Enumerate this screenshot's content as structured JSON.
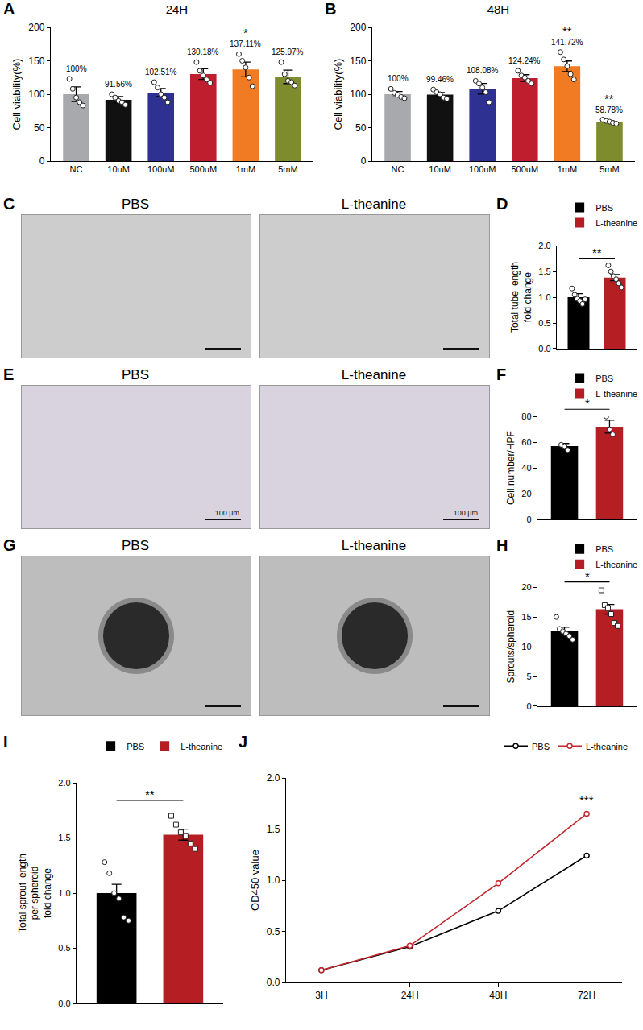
{
  "chart_data": [
    {
      "panel": "A",
      "type": "bar",
      "title": "24H",
      "ylabel": "Cell viability(%)",
      "categories": [
        "NC",
        "10uM",
        "100uM",
        "500uM",
        "1mM",
        "5mM"
      ],
      "values": [
        100,
        91.56,
        102.51,
        130.18,
        137.11,
        125.97
      ],
      "value_labels": [
        "100%",
        "91.56%",
        "102.51%",
        "130.18%",
        "137.11%",
        "125.97%"
      ],
      "data_labels": true,
      "colors": [
        "#a7a9ac",
        "#111111",
        "#2e3192",
        "#be1e2d",
        "#f07b22",
        "#7f8c2d"
      ],
      "error": [
        11,
        5,
        6,
        8,
        11,
        10
      ],
      "points": [
        [
          123,
          108,
          95,
          88,
          83
        ],
        [
          100,
          95,
          90,
          88,
          84
        ],
        [
          118,
          110,
          100,
          95,
          88
        ],
        [
          148,
          135,
          128,
          122,
          117
        ],
        [
          160,
          150,
          140,
          125,
          112
        ],
        [
          148,
          130,
          120,
          118,
          113
        ]
      ],
      "significance": [
        null,
        null,
        null,
        null,
        "*",
        null
      ],
      "ylim": [
        0,
        200
      ],
      "yticks": [
        0,
        50,
        100,
        150,
        200
      ],
      "grid": false
    },
    {
      "panel": "B",
      "type": "bar",
      "title": "48H",
      "ylabel": "Cell viability(%)",
      "categories": [
        "NC",
        "10uM",
        "100uM",
        "500uM",
        "1mM",
        "5mM"
      ],
      "values": [
        100,
        99.46,
        108.08,
        124.24,
        141.72,
        58.78
      ],
      "value_labels": [
        "100%",
        "99.46%",
        "108.08%",
        "124.24%",
        "141.72%",
        "58.78%"
      ],
      "data_labels": true,
      "colors": [
        "#a7a9ac",
        "#111111",
        "#2e3192",
        "#be1e2d",
        "#f07b22",
        "#7f8c2d"
      ],
      "error": [
        4,
        3,
        8,
        5,
        8,
        1.5
      ],
      "points": [
        [
          108,
          102,
          99,
          96,
          94
        ],
        [
          107,
          103,
          100,
          95,
          93
        ],
        [
          120,
          116,
          110,
          103,
          88
        ],
        [
          135,
          128,
          125,
          120,
          116
        ],
        [
          163,
          152,
          142,
          130,
          122
        ],
        [
          62,
          60,
          59,
          57,
          56
        ]
      ],
      "significance": [
        null,
        null,
        null,
        null,
        "**",
        "**"
      ],
      "ylim": [
        0,
        200
      ],
      "yticks": [
        0,
        50,
        100,
        150,
        200
      ],
      "grid": false
    },
    {
      "panel": "D",
      "type": "bar",
      "ylabel": "Total tube length\nfold change",
      "series": [
        {
          "name": "PBS",
          "color": "#000000",
          "values": [
            1.0
          ],
          "error": [
            0.07
          ],
          "points": [
            1.17,
            1.05,
            0.97,
            0.93,
            0.87,
            0.96
          ],
          "marker": "circle"
        },
        {
          "name": "L-theanine",
          "color": "#b51f24",
          "values": [
            1.38
          ],
          "error": [
            0.06
          ],
          "points": [
            1.62,
            1.5,
            1.41,
            1.35,
            1.27,
            1.19
          ],
          "marker": "circle"
        }
      ],
      "significance": "**",
      "legend": "top",
      "tick_labels": "y",
      "grid": false,
      "ylim": [
        0,
        2
      ],
      "yticks": [
        {
          "value": 0,
          "label": "0.0"
        },
        0.5,
        {
          "value": 1,
          "label": "1.0"
        },
        1.5,
        {
          "value": 2,
          "label": "2.0"
        }
      ]
    },
    {
      "panel": "F",
      "type": "bar",
      "ylabel": "Cell number/HPF",
      "series": [
        {
          "name": "PBS",
          "color": "#000000",
          "values": [
            57
          ],
          "error": [
            2
          ],
          "points": [
            58,
            57,
            54
          ],
          "marker": "circle"
        },
        {
          "name": "L-theanine",
          "color": "#b51f24",
          "values": [
            72
          ],
          "error": [
            5
          ],
          "points": [
            80,
            70,
            66
          ],
          "marker": "circle"
        }
      ],
      "significance": "*",
      "legend": "top",
      "tick_labels": "y",
      "grid": false,
      "ylim": [
        0,
        80
      ],
      "yticks": [
        0,
        20,
        40,
        60,
        80
      ]
    },
    {
      "panel": "H",
      "type": "bar",
      "ylabel": "Sprouts/spheroid",
      "series": [
        {
          "name": "PBS",
          "color": "#000000",
          "values": [
            12.6
          ],
          "error": [
            0.7
          ],
          "points": [
            15,
            13,
            12.6,
            12.2,
            11.8,
            11.2
          ],
          "marker": "circle"
        },
        {
          "name": "L-theanine",
          "color": "#b51f24",
          "values": [
            16.3
          ],
          "error": [
            0.8
          ],
          "points": [
            19.5,
            17,
            16.5,
            15.5,
            14,
            13.5
          ],
          "marker": "square"
        }
      ],
      "significance": "*",
      "legend": "top",
      "tick_labels": "y",
      "grid": false,
      "ylim": [
        0,
        20
      ],
      "yticks": [
        0,
        5,
        10,
        15,
        20
      ]
    },
    {
      "panel": "I",
      "type": "bar",
      "ylabel": "Total sprout length\nper spheroid\nfold change",
      "series": [
        {
          "name": "PBS",
          "color": "#000000",
          "values": [
            1.0
          ],
          "error": [
            0.08
          ],
          "points": [
            1.28,
            1.18,
            1.0,
            0.95,
            0.78,
            0.75
          ],
          "marker": "circle"
        },
        {
          "name": "L-theanine",
          "color": "#b51f24",
          "values": [
            1.53
          ],
          "error": [
            0.05
          ],
          "points": [
            1.7,
            1.62,
            1.55,
            1.52,
            1.45,
            1.4
          ],
          "marker": "square"
        }
      ],
      "significance": "**",
      "legend": "top",
      "tick_labels": "y",
      "grid": false,
      "ylim": [
        0,
        2
      ],
      "yticks": [
        {
          "value": 0,
          "label": "0.0"
        },
        0.5,
        {
          "value": 1,
          "label": "1.0"
        },
        1.5,
        {
          "value": 2,
          "label": "2.0"
        }
      ]
    },
    {
      "panel": "J",
      "type": "line",
      "ylabel": "OD450 value",
      "categories": [
        "3H",
        "24H",
        "48H",
        "72H"
      ],
      "series": [
        {
          "name": "PBS",
          "color": "#000000",
          "values": [
            0.12,
            0.35,
            0.7,
            1.24
          ],
          "marker": "circle"
        },
        {
          "name": "L-theanine",
          "color": "#c1272d",
          "values": [
            0.12,
            0.36,
            0.97,
            1.65
          ],
          "marker": "circle"
        }
      ],
      "significance": [
        null,
        null,
        null,
        "***"
      ],
      "legend": "top",
      "grid": false,
      "ylim": [
        0,
        2
      ],
      "yticks": [
        {
          "value": 0,
          "label": "0.0"
        },
        0.5,
        {
          "value": 1,
          "label": "1.0"
        },
        1.5,
        {
          "value": 2,
          "label": "2.0"
        }
      ]
    }
  ],
  "images": [
    {
      "panel": "C",
      "labels": [
        "PBS",
        "L-theanine"
      ]
    },
    {
      "panel": "E",
      "labels": [
        "PBS",
        "L-theanine"
      ],
      "scale_label": "100 μm"
    },
    {
      "panel": "G",
      "labels": [
        "PBS",
        "L-theanine"
      ]
    }
  ]
}
